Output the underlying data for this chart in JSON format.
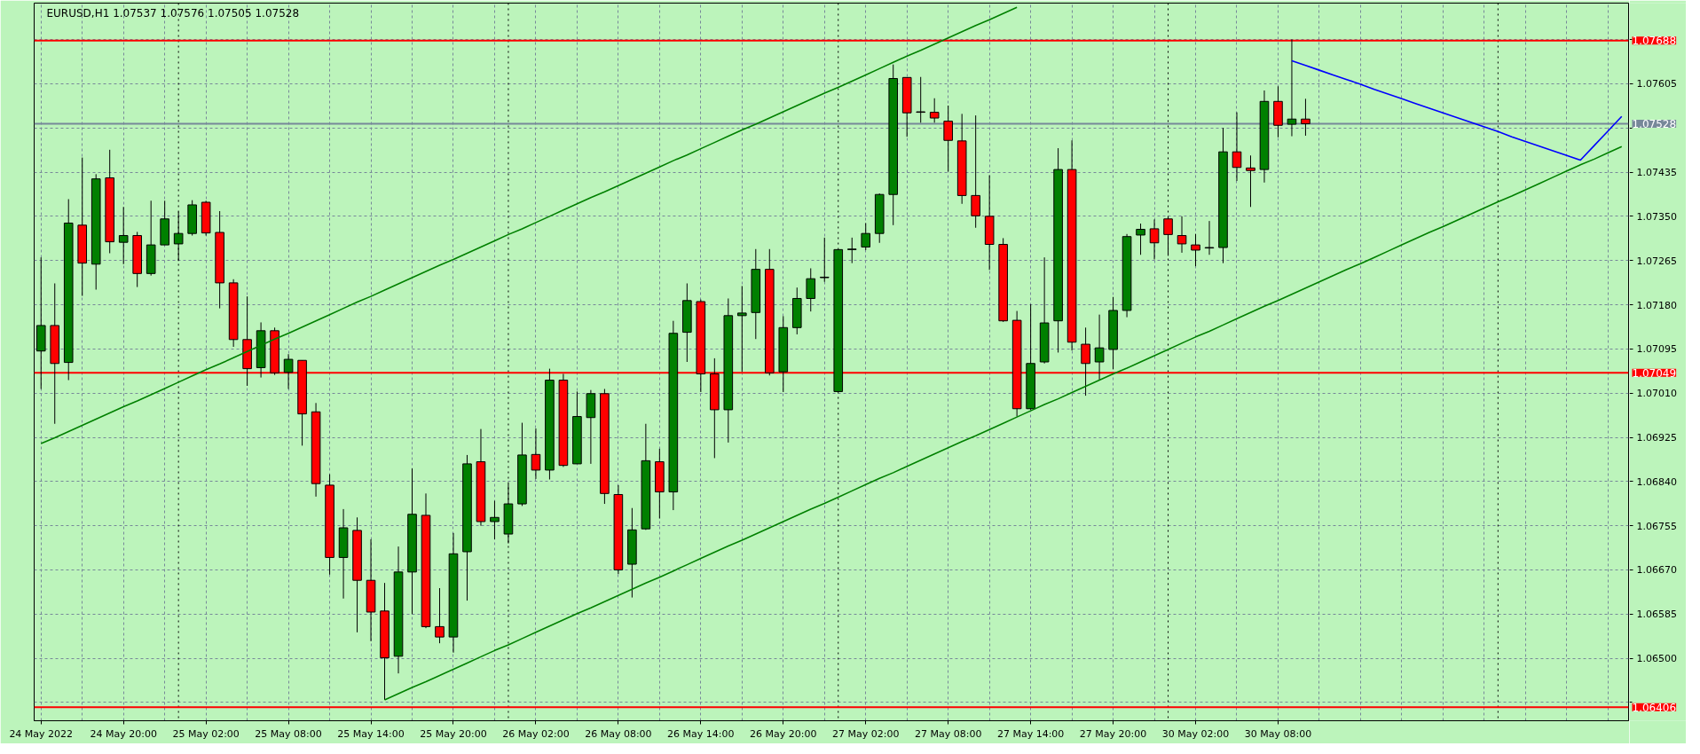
{
  "chart_data": {
    "type": "candlestick",
    "title": "EURUSD,H1  1.07537 1.07576 1.07505 1.07528",
    "categories": [
      "24 May 2022",
      null,
      null,
      null,
      null,
      null,
      "24 May 20:00",
      null,
      null,
      null,
      null,
      null,
      "25 May 02:00",
      null,
      null,
      null,
      null,
      null,
      "25 May 08:00",
      null,
      null,
      null,
      null,
      null,
      "25 May 14:00",
      null,
      null,
      null,
      null,
      null,
      "25 May 20:00",
      null,
      null,
      null,
      null,
      null,
      "26 May 02:00",
      null,
      null,
      null,
      null,
      null,
      "26 May 08:00",
      null,
      null,
      null,
      null,
      null,
      "26 May 14:00",
      null,
      null,
      null,
      null,
      null,
      "26 May 20:00",
      null,
      null,
      null,
      null,
      null,
      "27 May 02:00",
      null,
      null,
      null,
      null,
      null,
      "27 May 08:00",
      null,
      null,
      null,
      null,
      null,
      "27 May 14:00",
      null,
      null,
      null,
      null,
      null,
      "27 May 20:00",
      null,
      null,
      null,
      null,
      null,
      "30 May 02:00",
      null,
      null,
      null,
      null,
      null,
      "30 May 08:00",
      null,
      null,
      null,
      null,
      null,
      null,
      null,
      null,
      null,
      null,
      null,
      null,
      null,
      null,
      null,
      null,
      null,
      null,
      null,
      null,
      null,
      null,
      null,
      null,
      null
    ],
    "ohlc": [
      [
        1.07091,
        1.07271,
        1.07018,
        1.0714
      ],
      [
        1.0714,
        1.07221,
        1.06951,
        1.07067
      ],
      [
        1.07069,
        1.07383,
        1.07035,
        1.07337
      ],
      [
        1.07333,
        1.07463,
        1.07197,
        1.0726
      ],
      [
        1.07258,
        1.07431,
        1.07209,
        1.07422
      ],
      [
        1.07424,
        1.07478,
        1.07279,
        1.07301
      ],
      [
        1.073,
        1.07368,
        1.07258,
        1.07313
      ],
      [
        1.07313,
        1.0732,
        1.07214,
        1.0724
      ],
      [
        1.0724,
        1.0738,
        1.07236,
        1.07295
      ],
      [
        1.07295,
        1.0738,
        1.07295,
        1.07345
      ],
      [
        1.07297,
        1.07359,
        1.07264,
        1.07317
      ],
      [
        1.07317,
        1.07381,
        1.07313,
        1.07372
      ],
      [
        1.07377,
        1.0738,
        1.07313,
        1.07318
      ],
      [
        1.07319,
        1.0736,
        1.07173,
        1.07222
      ],
      [
        1.07222,
        1.07229,
        1.07099,
        1.07113
      ],
      [
        1.07113,
        1.07196,
        1.07024,
        1.07057
      ],
      [
        1.07059,
        1.07146,
        1.0704,
        1.0713
      ],
      [
        1.0713,
        1.07136,
        1.07045,
        1.07049
      ],
      [
        1.0705,
        1.07085,
        1.07018,
        1.07075
      ],
      [
        1.07073,
        1.07073,
        1.06909,
        1.0697
      ],
      [
        1.06974,
        1.06991,
        1.06811,
        1.06836
      ],
      [
        1.06833,
        1.06854,
        1.06661,
        1.06694
      ],
      [
        1.06694,
        1.06787,
        1.06615,
        1.06751
      ],
      [
        1.06746,
        1.06771,
        1.0655,
        1.0665
      ],
      [
        1.0665,
        1.06729,
        1.06533,
        1.06589
      ],
      [
        1.06591,
        1.06645,
        1.0642,
        1.06501
      ],
      [
        1.06504,
        1.06715,
        1.06471,
        1.06666
      ],
      [
        1.06666,
        1.06865,
        1.06585,
        1.06777
      ],
      [
        1.06775,
        1.06817,
        1.06558,
        1.06561
      ],
      [
        1.06561,
        1.06635,
        1.06529,
        1.06541
      ],
      [
        1.06541,
        1.06741,
        1.06511,
        1.06701
      ],
      [
        1.06705,
        1.06891,
        1.06611,
        1.06874
      ],
      [
        1.06878,
        1.06941,
        1.06755,
        1.06763
      ],
      [
        1.06763,
        1.06803,
        1.06729,
        1.06771
      ],
      [
        1.06739,
        1.06836,
        1.06721,
        1.06797
      ],
      [
        1.06797,
        1.06953,
        1.06793,
        1.06891
      ],
      [
        1.06892,
        1.06942,
        1.06845,
        1.06862
      ],
      [
        1.06862,
        1.07057,
        1.06844,
        1.07035
      ],
      [
        1.07035,
        1.07047,
        1.06868,
        1.06871
      ],
      [
        1.06874,
        1.07013,
        1.06874,
        1.06965
      ],
      [
        1.06963,
        1.07016,
        1.06874,
        1.07009
      ],
      [
        1.07009,
        1.07018,
        1.06797,
        1.06817
      ],
      [
        1.06815,
        1.06833,
        1.06662,
        1.0667
      ],
      [
        1.06681,
        1.06789,
        1.06617,
        1.06747
      ],
      [
        1.06749,
        1.06951,
        1.06747,
        1.0688
      ],
      [
        1.06878,
        1.06903,
        1.06769,
        1.0682
      ],
      [
        1.0682,
        1.07149,
        1.06785,
        1.07125
      ],
      [
        1.07127,
        1.07221,
        1.0707,
        1.07188
      ],
      [
        1.07186,
        1.0719,
        1.07012,
        1.07047
      ],
      [
        1.07047,
        1.07077,
        1.06885,
        1.06978
      ],
      [
        1.06978,
        1.07192,
        1.06915,
        1.07159
      ],
      [
        1.07159,
        1.07216,
        1.07051,
        1.07164
      ],
      [
        1.07165,
        1.07287,
        1.07114,
        1.07248
      ],
      [
        1.07248,
        1.07287,
        1.07044,
        1.07049
      ],
      [
        1.07051,
        1.07158,
        1.07012,
        1.07136
      ],
      [
        1.07136,
        1.07213,
        1.07123,
        1.07192
      ],
      [
        1.07192,
        1.0725,
        1.07167,
        1.0723
      ],
      [
        1.07232,
        1.07309,
        1.07224,
        1.07233
      ],
      [
        1.07013,
        1.07286,
        1.07013,
        1.07286
      ],
      [
        1.07286,
        1.07309,
        1.0726,
        1.07287
      ],
      [
        1.07291,
        1.07337,
        1.07285,
        1.07317
      ],
      [
        1.07317,
        1.07394,
        1.07299,
        1.07392
      ],
      [
        1.07392,
        1.07642,
        1.07333,
        1.07615
      ],
      [
        1.07617,
        1.07617,
        1.07503,
        1.07549
      ],
      [
        1.07551,
        1.07618,
        1.0753,
        1.0755
      ],
      [
        1.0755,
        1.07577,
        1.0753,
        1.07539
      ],
      [
        1.07533,
        1.07563,
        1.07436,
        1.07496
      ],
      [
        1.07495,
        1.07547,
        1.07374,
        1.0739
      ],
      [
        1.0739,
        1.07544,
        1.07328,
        1.07351
      ],
      [
        1.0735,
        1.07429,
        1.07247,
        1.07296
      ],
      [
        1.07296,
        1.07308,
        1.07147,
        1.07149
      ],
      [
        1.0715,
        1.07168,
        1.06965,
        1.0698
      ],
      [
        1.0698,
        1.07181,
        1.06978,
        1.07067
      ],
      [
        1.0707,
        1.07271,
        1.07067,
        1.07145
      ],
      [
        1.07149,
        1.07481,
        1.07088,
        1.0744
      ],
      [
        1.0744,
        1.07496,
        1.07092,
        1.07108
      ],
      [
        1.07104,
        1.07136,
        1.07005,
        1.07067
      ],
      [
        1.0707,
        1.07161,
        1.07036,
        1.07097
      ],
      [
        1.07094,
        1.07195,
        1.07056,
        1.07169
      ],
      [
        1.07169,
        1.07316,
        1.07156,
        1.07311
      ],
      [
        1.07314,
        1.07336,
        1.07276,
        1.07325
      ],
      [
        1.07326,
        1.07344,
        1.07267,
        1.07299
      ],
      [
        1.07345,
        1.07348,
        1.07274,
        1.07315
      ],
      [
        1.07313,
        1.0735,
        1.0728,
        1.07297
      ],
      [
        1.07295,
        1.07316,
        1.07254,
        1.07285
      ],
      [
        1.07289,
        1.07341,
        1.07276,
        1.0729
      ],
      [
        1.0729,
        1.0752,
        1.0726,
        1.07474
      ],
      [
        1.07474,
        1.0755,
        1.07418,
        1.07444
      ],
      [
        1.07443,
        1.07467,
        1.07368,
        1.07438
      ],
      [
        1.0744,
        1.07592,
        1.07415,
        1.07571
      ],
      [
        1.07571,
        1.076,
        1.07502,
        1.07525
      ],
      [
        1.07527,
        1.0769,
        1.07504,
        1.07537
      ],
      [
        1.07537,
        1.07576,
        1.07505,
        1.07528
      ],
      null,
      null,
      null,
      null,
      null,
      null,
      null,
      null,
      null,
      null,
      null,
      null,
      null,
      null,
      null,
      null,
      null,
      null,
      null,
      null,
      null,
      null,
      null
    ],
    "colors": [
      "#008000",
      "#ff0000",
      "#008000",
      "#ff0000",
      "#008000",
      "#ff0000",
      "#008000",
      "#ff0000",
      "#008000",
      "#008000",
      "#008000",
      "#008000",
      "#ff0000",
      "#ff0000",
      "#ff0000",
      "#ff0000",
      "#008000",
      "#ff0000",
      "#008000",
      "#ff0000",
      "#ff0000",
      "#ff0000",
      "#008000",
      "#ff0000",
      "#ff0000",
      "#ff0000",
      "#008000",
      "#008000",
      "#ff0000",
      "#ff0000",
      "#008000",
      "#008000",
      "#ff0000",
      "#008000",
      "#008000",
      "#008000",
      "#ff0000",
      "#008000",
      "#ff0000",
      "#008000",
      "#008000",
      "#ff0000",
      "#ff0000",
      "#008000",
      "#008000",
      "#ff0000",
      "#008000",
      "#008000",
      "#ff0000",
      "#ff0000",
      "#008000",
      "#008000",
      "#008000",
      "#ff0000",
      "#008000",
      "#008000",
      "#008000",
      "#008000",
      "#008000",
      "#008000",
      "#008000",
      "#008000",
      "#008000",
      "#ff0000",
      "#ff0000",
      "#ff0000",
      "#ff0000",
      "#ff0000",
      "#ff0000",
      "#ff0000",
      "#ff0000",
      "#ff0000",
      "#008000",
      "#008000",
      "#008000",
      "#ff0000",
      "#ff0000",
      "#008000",
      "#008000",
      "#008000",
      "#008000",
      "#ff0000",
      "#ff0000",
      "#ff0000",
      "#ff0000",
      "#008000",
      "#008000",
      "#ff0000",
      "#ff0000",
      "#008000",
      "#ff0000",
      "#008000",
      "#ff0000",
      null,
      null,
      null,
      null,
      null,
      null,
      null,
      null,
      null,
      null,
      null,
      null,
      null,
      null,
      null,
      null,
      null,
      null,
      null,
      null,
      null,
      null,
      null
    ],
    "series": [
      {
        "type": "line",
        "color": "#008000",
        "values": [
          1.06913,
          1.06924,
          1.06936,
          1.06948,
          1.0696,
          1.06972,
          1.06984,
          1.06995,
          1.07007,
          1.07019,
          1.07031,
          1.07043,
          1.07055,
          1.07066,
          1.07078,
          1.0709,
          1.07102,
          1.07114,
          1.07125,
          1.07137,
          1.07149,
          1.07161,
          1.07173,
          1.07185,
          1.07196,
          1.07208,
          1.0722,
          1.07232,
          1.07244,
          1.07256,
          1.07267,
          1.07279,
          1.07291,
          1.07303,
          1.07315,
          1.07326,
          1.07338,
          1.0735,
          1.07362,
          1.07374,
          1.07386,
          1.07397,
          1.07409,
          1.07421,
          1.07433,
          1.07445,
          1.07457,
          1.07468,
          1.0748,
          1.07492,
          1.07504,
          1.07516,
          1.07527,
          1.07539,
          1.07551,
          1.07563,
          1.07575,
          1.07587,
          1.07598,
          1.0761,
          1.07622,
          1.07634,
          1.07646,
          1.07658,
          1.07669,
          1.07681,
          1.07693,
          1.07705,
          1.07717,
          1.07728,
          1.0774,
          1.07752,
          null,
          null,
          null,
          null,
          null,
          null,
          null,
          null,
          null,
          null,
          null,
          null,
          null,
          null,
          null,
          null,
          null,
          null,
          null,
          null,
          null,
          null,
          null,
          null,
          null,
          null,
          null,
          null,
          null,
          null,
          null,
          null,
          null,
          null,
          null,
          null,
          null,
          null,
          null,
          null,
          null,
          null,
          null,
          null
        ]
      },
      {
        "type": "line",
        "color": "#008000",
        "values": [
          null,
          null,
          null,
          null,
          null,
          null,
          null,
          null,
          null,
          null,
          null,
          null,
          null,
          null,
          null,
          null,
          null,
          null,
          null,
          null,
          null,
          null,
          null,
          null,
          null,
          1.0642,
          1.06432,
          1.06444,
          1.06455,
          1.06467,
          1.06479,
          1.06491,
          1.06503,
          1.06515,
          1.06526,
          1.06538,
          1.0655,
          1.06562,
          1.06574,
          1.06586,
          1.06597,
          1.06609,
          1.06621,
          1.06633,
          1.06645,
          1.06656,
          1.06668,
          1.0668,
          1.06692,
          1.06704,
          1.06716,
          1.06727,
          1.06739,
          1.06751,
          1.06763,
          1.06775,
          1.06787,
          1.06798,
          1.0681,
          1.06822,
          1.06834,
          1.06846,
          1.06857,
          1.06869,
          1.06881,
          1.06893,
          1.06905,
          1.06917,
          1.06928,
          1.0694,
          1.06952,
          1.06964,
          1.06976,
          1.06988,
          1.06999,
          1.07011,
          1.07023,
          1.07035,
          1.07047,
          1.07058,
          1.0707,
          1.07082,
          1.07094,
          1.07106,
          1.07118,
          1.07129,
          1.07141,
          1.07153,
          1.07165,
          1.07177,
          1.07188,
          1.072,
          1.07212,
          1.07224,
          1.07236,
          1.07248,
          1.07259,
          1.07271,
          1.07283,
          1.07295,
          1.07307,
          1.07319,
          1.0733,
          1.07342,
          1.07354,
          1.07366,
          1.07378,
          1.07389,
          1.07401,
          1.07413,
          1.07425,
          1.07437,
          1.07449,
          1.0746,
          1.07472,
          1.07484
        ]
      },
      {
        "type": "line",
        "color": "#0000ff",
        "values": [
          null,
          null,
          null,
          null,
          null,
          null,
          null,
          null,
          null,
          null,
          null,
          null,
          null,
          null,
          null,
          null,
          null,
          null,
          null,
          null,
          null,
          null,
          null,
          null,
          null,
          null,
          null,
          null,
          null,
          null,
          null,
          null,
          null,
          null,
          null,
          null,
          null,
          null,
          null,
          null,
          null,
          null,
          null,
          null,
          null,
          null,
          null,
          null,
          null,
          null,
          null,
          null,
          null,
          null,
          null,
          null,
          null,
          null,
          null,
          null,
          null,
          null,
          null,
          null,
          null,
          null,
          null,
          null,
          null,
          null,
          null,
          null,
          null,
          null,
          null,
          null,
          null,
          null,
          null,
          null,
          null,
          null,
          null,
          null,
          null,
          null,
          null,
          null,
          null,
          null,
          null,
          1.07649,
          1.0764,
          1.07631,
          1.07622,
          1.07613,
          1.07604,
          1.07594,
          1.07585,
          1.07576,
          1.07567,
          1.07558,
          1.07549,
          1.0754,
          1.07531,
          1.07522,
          1.07513,
          1.07503,
          1.07494,
          1.07485,
          1.07476,
          1.07467,
          1.07458,
          1.07486,
          1.07514,
          1.07542
        ]
      }
    ],
    "ylim": [
      1.0638,
      1.0776
    ],
    "yticks": [
      {
        "value": 1.06415,
        "label": null
      },
      {
        "value": 1.065,
        "label": "1.06500"
      },
      {
        "value": 1.06585,
        "label": "1.06585"
      },
      {
        "value": 1.0667,
        "label": "1.06670"
      },
      {
        "value": 1.06755,
        "label": "1.06755"
      },
      {
        "value": 1.0684,
        "label": "1.06840"
      },
      {
        "value": 1.06925,
        "label": "1.06925"
      },
      {
        "value": 1.0701,
        "label": "1.07010"
      },
      {
        "value": 1.07095,
        "label": "1.07095"
      },
      {
        "value": 1.0718,
        "label": "1.07180"
      },
      {
        "value": 1.07265,
        "label": "1.07265"
      },
      {
        "value": 1.0735,
        "label": "1.07350"
      },
      {
        "value": 1.07435,
        "label": "1.07435"
      },
      {
        "value": 1.0752,
        "label": null
      },
      {
        "value": 1.07605,
        "label": "1.07605"
      },
      {
        "value": 1.0769,
        "label": null
      }
    ],
    "grid": true,
    "ref_lines": [
      {
        "axis": "y",
        "value": 1.07688,
        "label": "1.07688",
        "color": "#ff0000"
      },
      {
        "axis": "y",
        "value": 1.07528,
        "label": "1.07528",
        "color": "#778899"
      },
      {
        "axis": "y",
        "value": 1.07049,
        "label": "1.07049",
        "color": "#ff0000"
      },
      {
        "axis": "y",
        "value": 1.06406,
        "label": "1.06406",
        "color": "#ff0000"
      }
    ]
  }
}
